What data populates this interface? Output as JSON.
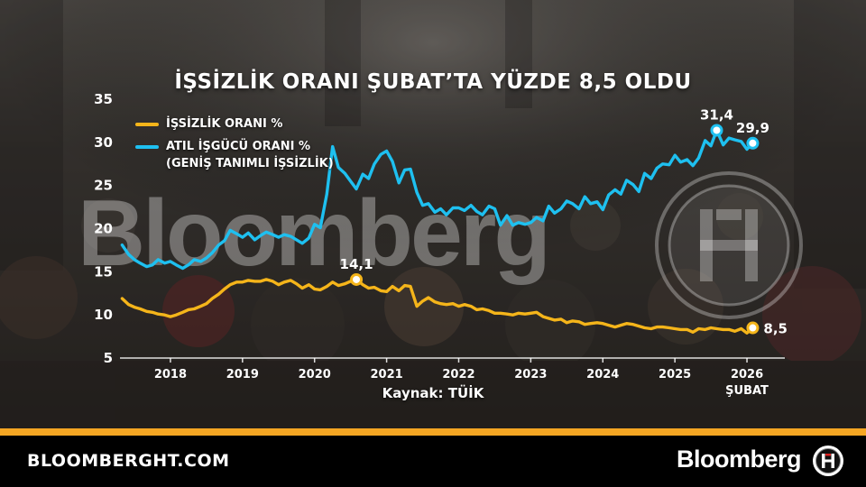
{
  "title": "İŞSİZLİK ORANI ŞUBAT’TA YÜZDE 8,5 OLDU",
  "source": "Kaynak: TÜİK",
  "watermark": "Bloomberg",
  "footer": {
    "url": "BLOOMBERGHT.COM",
    "brand": "Bloomberg",
    "logo_letters": "HT"
  },
  "colors": {
    "unemployment": "#f5b51a",
    "underutilization": "#1ec0f0",
    "accent_bar": "#f5a623"
  },
  "legend": [
    {
      "label": "İŞSİZLİK ORANI %",
      "color": "#f5b51a"
    },
    {
      "label": "ATIL İŞGÜCÜ ORANI %",
      "label2": "(GENİŞ TANIMLI İŞSİZLİK)",
      "color": "#1ec0f0"
    }
  ],
  "chart_data": {
    "type": "line",
    "ylim": [
      5,
      35
    ],
    "yticks": [
      5,
      10,
      15,
      20,
      25,
      30,
      35
    ],
    "xlim": [
      2017.3,
      2026.4
    ],
    "xticks": [
      {
        "value": 2018,
        "label": "2018"
      },
      {
        "value": 2019,
        "label": "2019"
      },
      {
        "value": 2020,
        "label": "2020"
      },
      {
        "value": 2021,
        "label": "2021"
      },
      {
        "value": 2022,
        "label": "2022"
      },
      {
        "value": 2023,
        "label": "2023"
      },
      {
        "value": 2024,
        "label": "2024"
      },
      {
        "value": 2025,
        "label": "2025"
      },
      {
        "value": 2026,
        "label": "2026",
        "sublabel": "ŞUBAT"
      }
    ],
    "series": [
      {
        "name": "İŞSİZLİK ORANI %",
        "color": "#f5b51a",
        "x": [
          2017.33,
          2017.42,
          2017.5,
          2017.58,
          2017.67,
          2017.75,
          2017.83,
          2017.92,
          2018.0,
          2018.08,
          2018.17,
          2018.25,
          2018.33,
          2018.42,
          2018.5,
          2018.58,
          2018.67,
          2018.75,
          2018.83,
          2018.92,
          2019.0,
          2019.08,
          2019.17,
          2019.25,
          2019.33,
          2019.42,
          2019.5,
          2019.58,
          2019.67,
          2019.75,
          2019.83,
          2019.92,
          2020.0,
          2020.08,
          2020.17,
          2020.25,
          2020.33,
          2020.42,
          2020.5,
          2020.58,
          2020.67,
          2020.75,
          2020.83,
          2020.92,
          2021.0,
          2021.08,
          2021.17,
          2021.25,
          2021.33,
          2021.42,
          2021.5,
          2021.58,
          2021.67,
          2021.75,
          2021.83,
          2021.92,
          2022.0,
          2022.08,
          2022.17,
          2022.25,
          2022.33,
          2022.42,
          2022.5,
          2022.58,
          2022.67,
          2022.75,
          2022.83,
          2022.92,
          2023.0,
          2023.08,
          2023.17,
          2023.25,
          2023.33,
          2023.42,
          2023.5,
          2023.58,
          2023.67,
          2023.75,
          2023.83,
          2023.92,
          2024.0,
          2024.08,
          2024.17,
          2024.25,
          2024.33,
          2024.42,
          2024.5,
          2024.58,
          2024.67,
          2024.75,
          2024.83,
          2024.92,
          2025.0,
          2025.08,
          2025.17,
          2025.25,
          2025.33,
          2025.42,
          2025.5,
          2025.58,
          2025.67,
          2025.75,
          2025.83,
          2025.92,
          2026.0,
          2026.08
        ],
        "y": [
          11.9,
          11.2,
          10.9,
          10.7,
          10.4,
          10.3,
          10.1,
          10.0,
          9.8,
          10.0,
          10.3,
          10.6,
          10.7,
          11.0,
          11.3,
          11.9,
          12.4,
          13.0,
          13.5,
          13.8,
          13.8,
          14.0,
          13.9,
          13.9,
          14.1,
          13.9,
          13.5,
          13.8,
          14.0,
          13.6,
          13.1,
          13.5,
          13.0,
          12.9,
          13.3,
          13.8,
          13.4,
          13.6,
          13.9,
          14.1,
          13.5,
          13.1,
          13.2,
          12.8,
          12.7,
          13.3,
          12.8,
          13.4,
          13.3,
          11.0,
          11.6,
          12.0,
          11.5,
          11.3,
          11.2,
          11.3,
          11.0,
          11.2,
          11.0,
          10.6,
          10.7,
          10.5,
          10.2,
          10.2,
          10.1,
          10.0,
          10.2,
          10.1,
          10.2,
          10.3,
          9.8,
          9.6,
          9.4,
          9.5,
          9.1,
          9.3,
          9.2,
          8.9,
          9.0,
          9.1,
          9.0,
          8.8,
          8.6,
          8.8,
          9.0,
          8.9,
          8.7,
          8.5,
          8.4,
          8.6,
          8.6,
          8.5,
          8.4,
          8.3,
          8.3,
          8.0,
          8.4,
          8.3,
          8.5,
          8.4,
          8.3,
          8.3,
          8.1,
          8.4,
          7.9,
          8.5
        ]
      },
      {
        "name": "ATIL İŞGÜCÜ ORANI % (GENİŞ TANIMLI İŞSİZLİK)",
        "color": "#1ec0f0",
        "x": [
          2017.33,
          2017.42,
          2017.5,
          2017.58,
          2017.67,
          2017.75,
          2017.83,
          2017.92,
          2018.0,
          2018.08,
          2018.17,
          2018.25,
          2018.33,
          2018.42,
          2018.5,
          2018.58,
          2018.67,
          2018.75,
          2018.83,
          2018.92,
          2019.0,
          2019.08,
          2019.17,
          2019.25,
          2019.33,
          2019.42,
          2019.5,
          2019.58,
          2019.67,
          2019.75,
          2019.83,
          2019.92,
          2020.0,
          2020.08,
          2020.17,
          2020.25,
          2020.33,
          2020.42,
          2020.5,
          2020.58,
          2020.67,
          2020.75,
          2020.83,
          2020.92,
          2021.0,
          2021.08,
          2021.17,
          2021.25,
          2021.33,
          2021.42,
          2021.5,
          2021.58,
          2021.67,
          2021.75,
          2021.83,
          2021.92,
          2022.0,
          2022.08,
          2022.17,
          2022.25,
          2022.33,
          2022.42,
          2022.5,
          2022.58,
          2022.67,
          2022.75,
          2022.83,
          2022.92,
          2023.0,
          2023.08,
          2023.17,
          2023.25,
          2023.33,
          2023.42,
          2023.5,
          2023.58,
          2023.67,
          2023.75,
          2023.83,
          2023.92,
          2024.0,
          2024.08,
          2024.17,
          2024.25,
          2024.33,
          2024.42,
          2024.5,
          2024.58,
          2024.67,
          2024.75,
          2024.83,
          2024.92,
          2025.0,
          2025.08,
          2025.17,
          2025.25,
          2025.33,
          2025.42,
          2025.5,
          2025.58,
          2025.67,
          2025.75,
          2025.83,
          2025.92,
          2026.0,
          2026.08
        ],
        "y": [
          18.1,
          17.0,
          16.4,
          16.0,
          15.6,
          15.8,
          16.4,
          16.0,
          16.2,
          15.8,
          15.4,
          15.8,
          16.4,
          16.2,
          16.6,
          17.2,
          18.1,
          18.6,
          19.8,
          19.4,
          19.0,
          19.5,
          18.7,
          19.2,
          19.6,
          19.3,
          19.0,
          19.3,
          19.1,
          18.7,
          18.3,
          18.9,
          20.5,
          20.1,
          24.0,
          29.5,
          27.1,
          26.4,
          25.5,
          24.6,
          26.3,
          25.8,
          27.5,
          28.6,
          29.0,
          27.8,
          25.3,
          26.8,
          26.9,
          24.2,
          22.7,
          22.9,
          21.9,
          22.3,
          21.6,
          22.4,
          22.4,
          22.1,
          22.7,
          22.0,
          21.6,
          22.6,
          22.3,
          20.4,
          21.5,
          20.4,
          20.7,
          20.5,
          20.7,
          21.3,
          20.9,
          22.6,
          21.8,
          22.3,
          23.2,
          22.9,
          22.3,
          23.7,
          22.9,
          23.1,
          22.2,
          23.9,
          24.5,
          24.0,
          25.6,
          25.1,
          24.3,
          26.4,
          25.8,
          27.0,
          27.5,
          27.4,
          28.5,
          27.7,
          28.0,
          27.3,
          28.2,
          30.2,
          29.6,
          31.4,
          29.7,
          30.5,
          30.3,
          30.1,
          29.2,
          29.9
        ]
      }
    ],
    "annotations": [
      {
        "series": 0,
        "x": 2020.58,
        "y": 14.1,
        "label": "14,1",
        "pos": "above"
      },
      {
        "series": 0,
        "x": 2026.08,
        "y": 8.5,
        "label": "8,5",
        "pos": "right"
      },
      {
        "series": 1,
        "x": 2025.58,
        "y": 31.4,
        "label": "31,4",
        "pos": "above"
      },
      {
        "series": 1,
        "x": 2026.08,
        "y": 29.9,
        "label": "29,9",
        "pos": "above"
      }
    ]
  }
}
